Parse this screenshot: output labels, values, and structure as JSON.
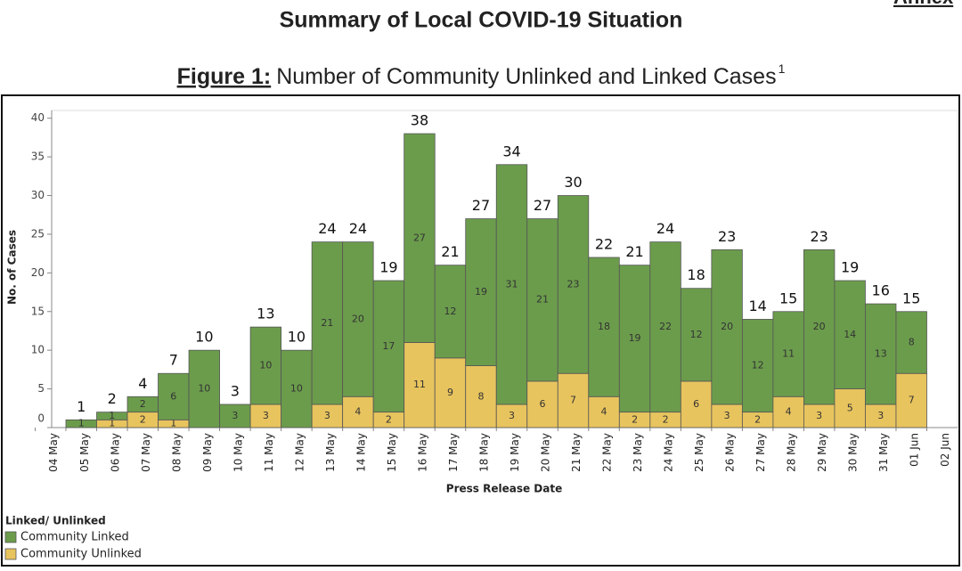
{
  "header": {
    "title": "Summary of Local COVID-19 Situation",
    "annex": "Annex"
  },
  "chart_data": {
    "type": "bar",
    "stacked": true,
    "figure_label": "Figure 1:",
    "title": "Number of Community Unlinked and Linked Cases",
    "title_footnote": "1",
    "y_label": "No. of Cases",
    "x_label": "Press Release Date",
    "legend_title": "Linked/ Unlinked",
    "legend_position": "bottom-left",
    "categories": [
      "04 May",
      "05 May",
      "06 May",
      "07 May",
      "08 May",
      "09 May",
      "10 May",
      "11 May",
      "12 May",
      "13 May",
      "14 May",
      "15 May",
      "16 May",
      "17 May",
      "18 May",
      "19 May",
      "20 May",
      "21 May",
      "22 May",
      "23 May",
      "24 May",
      "25 May",
      "26 May",
      "27 May",
      "28 May",
      "29 May",
      "30 May",
      "31 May",
      "01 Jun",
      "02 Jun"
    ],
    "series": [
      {
        "name": "Community Linked",
        "color": "#6b9c4c",
        "values": [
          null,
          1,
          1,
          2,
          6,
          10,
          3,
          10,
          10,
          21,
          20,
          17,
          27,
          12,
          19,
          31,
          21,
          23,
          18,
          19,
          22,
          12,
          20,
          12,
          11,
          20,
          14,
          13,
          8,
          null
        ]
      },
      {
        "name": "Community Unlinked",
        "color": "#e8c45e",
        "values": [
          null,
          null,
          1,
          2,
          1,
          null,
          null,
          3,
          null,
          3,
          4,
          2,
          11,
          9,
          8,
          3,
          6,
          7,
          4,
          2,
          2,
          6,
          3,
          2,
          4,
          3,
          5,
          3,
          7,
          null
        ]
      }
    ],
    "totals": [
      null,
      1,
      2,
      4,
      7,
      10,
      3,
      13,
      10,
      24,
      24,
      19,
      38,
      21,
      27,
      34,
      27,
      30,
      22,
      21,
      24,
      18,
      23,
      14,
      15,
      23,
      19,
      16,
      15,
      null
    ],
    "ylim": [
      0,
      41
    ],
    "yticks": [
      0,
      5,
      10,
      15,
      20,
      25,
      30,
      35,
      40
    ],
    "grid": false
  }
}
